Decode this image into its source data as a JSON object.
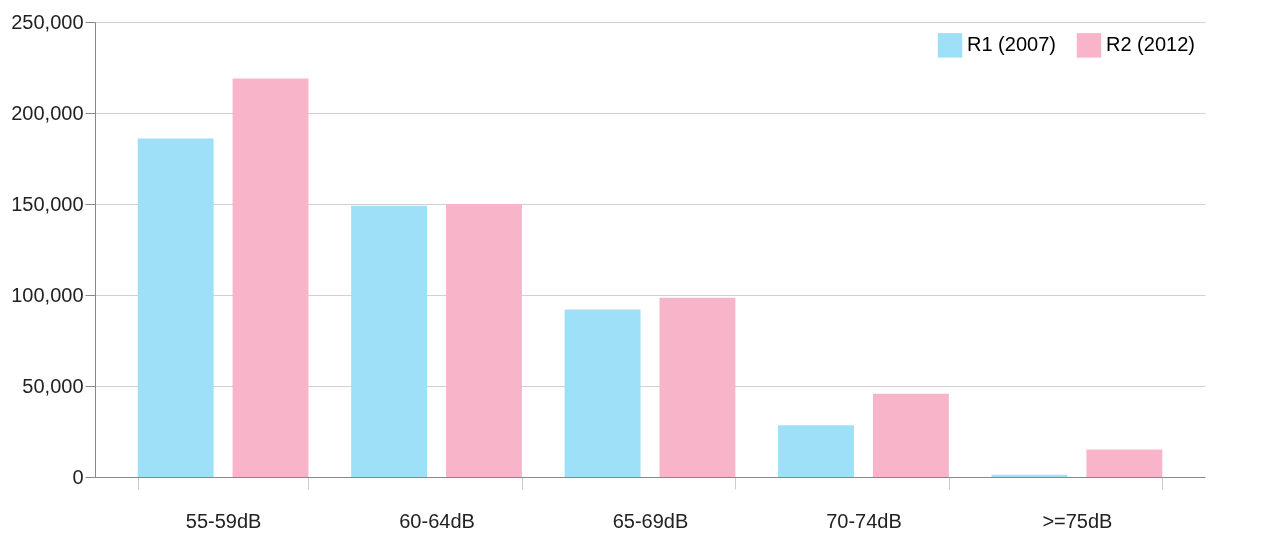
{
  "chart_data": {
    "type": "bar",
    "categories": [
      "55-59dB",
      "60-64dB",
      "65-69dB",
      "70-74dB",
      ">=75dB"
    ],
    "series": [
      {
        "name": "R1 (2007)",
        "color": "#9ee0f8",
        "values": [
          186000,
          149000,
          92000,
          28500,
          1200
        ]
      },
      {
        "name": "R2 (2012)",
        "color": "#f8b5c9",
        "values": [
          219000,
          150000,
          98500,
          45700,
          15100
        ]
      }
    ],
    "ylim": [
      0,
      250000
    ],
    "yticks": [
      {
        "value": 0,
        "label": "0"
      },
      {
        "value": 50000,
        "label": "50,000"
      },
      {
        "value": 100000,
        "label": "100,000"
      },
      {
        "value": 150000,
        "label": "150,000"
      },
      {
        "value": 200000,
        "label": "200,000"
      },
      {
        "value": 250000,
        "label": "250,000"
      }
    ],
    "grid": "y",
    "legend": "top right"
  }
}
